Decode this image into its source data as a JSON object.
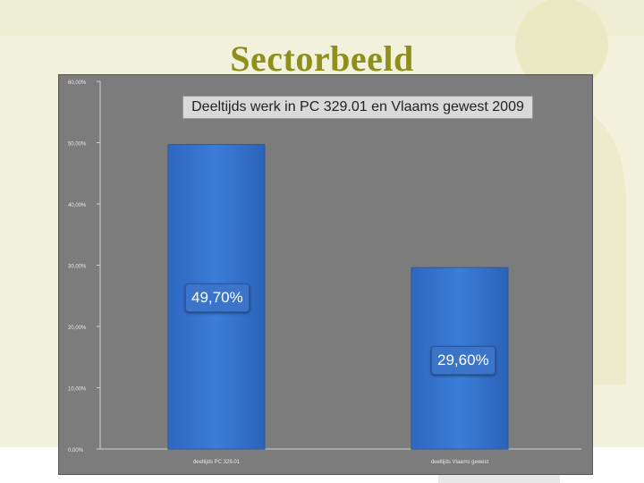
{
  "slide": {
    "title": "Sectorbeeld",
    "colors": {
      "title": "#8f8f1e",
      "background_tint": "#f2f2dc",
      "chart_background": "#7c7c7c"
    }
  },
  "chart_data": {
    "type": "bar",
    "title": "Deeltijds werk in PC 329.01 en Vlaams gewest 2009",
    "categories": [
      "deeltijds PC 329.01",
      "deeltijds Vlaams gewest"
    ],
    "values": [
      49.7,
      29.6
    ],
    "data_labels": [
      "49,70%",
      "29,60%"
    ],
    "ylim": [
      0,
      60
    ],
    "yticks": [
      0,
      10,
      20,
      30,
      40,
      50,
      60
    ],
    "ytick_labels": [
      "0,00%",
      "10,00%",
      "20,00%",
      "30,00%",
      "40,00%",
      "50,00%",
      "60,00%"
    ],
    "xlabel": "",
    "ylabel": "",
    "grid": false,
    "legend": "none",
    "bar_color": "#3b7dd8"
  }
}
